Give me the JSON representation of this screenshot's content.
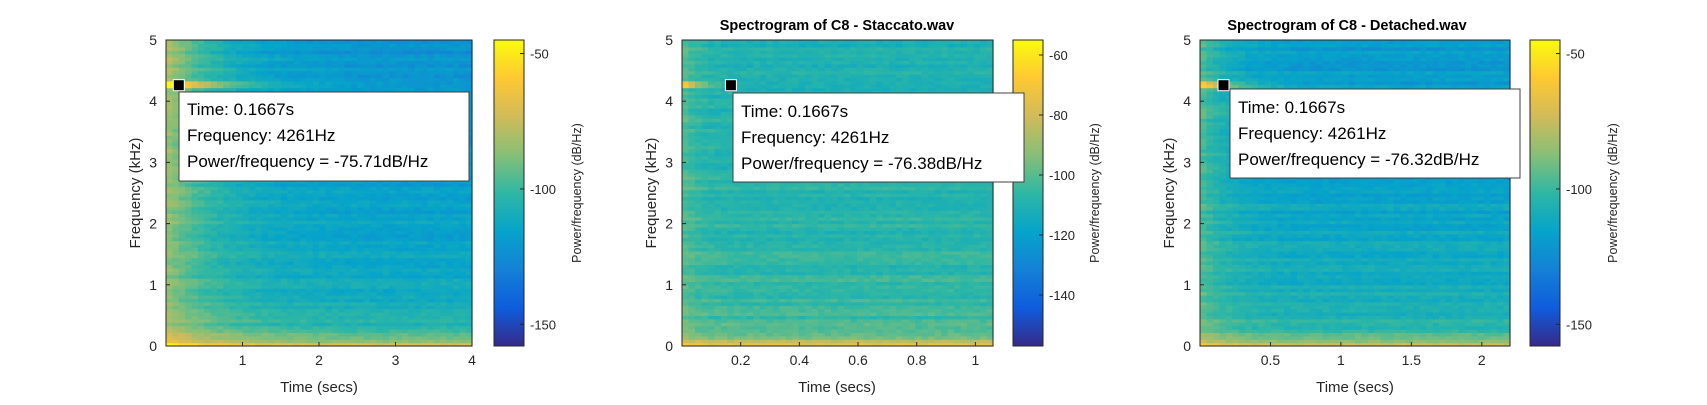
{
  "chart_data": [
    {
      "type": "heatmap",
      "title": "",
      "xlabel": "Time (secs)",
      "ylabel": "Frequency (kHz)",
      "xlim": [
        0,
        4
      ],
      "ylim": [
        0,
        5
      ],
      "xticks": [
        {
          "v": 1,
          "label": "1"
        },
        {
          "v": 2,
          "label": "2"
        },
        {
          "v": 3,
          "label": "3"
        },
        {
          "v": 4,
          "label": "4"
        }
      ],
      "yticks": [
        {
          "v": 0,
          "label": "0"
        },
        {
          "v": 1,
          "label": "1"
        },
        {
          "v": 2,
          "label": "2"
        },
        {
          "v": 3,
          "label": "3"
        },
        {
          "v": 4,
          "label": "4"
        },
        {
          "v": 5,
          "label": "5"
        }
      ],
      "colorbar": {
        "label": "Power/frequency (dB/Hz)",
        "clim": [
          -158,
          -45
        ],
        "ticks": [
          {
            "v": -50,
            "label": "-50"
          },
          {
            "v": -100,
            "label": "-100"
          },
          {
            "v": -150,
            "label": "-150"
          }
        ]
      },
      "marker": {
        "x": 0.1667,
        "y": 4.261
      },
      "datatip": [
        "Time: 0.1667s",
        "Frequency: 4261Hz",
        "Power/frequency = -75.71dB/Hz"
      ],
      "profile": {
        "base": 0.4,
        "slope": 0.09,
        "cut": 0.4,
        "decay": 0.18,
        "lowband": 0.12
      }
    },
    {
      "type": "heatmap",
      "title": "Spectrogram of C8 - Staccato.wav",
      "xlabel": "Time (secs)",
      "ylabel": "Frequency (kHz)",
      "xlim": [
        0,
        1.06
      ],
      "ylim": [
        0,
        5
      ],
      "xticks": [
        {
          "v": 0.2,
          "label": "0.2"
        },
        {
          "v": 0.4,
          "label": "0.4"
        },
        {
          "v": 0.6,
          "label": "0.6"
        },
        {
          "v": 0.8,
          "label": "0.8"
        },
        {
          "v": 1,
          "label": "1"
        }
      ],
      "yticks": [
        {
          "v": 0,
          "label": "0"
        },
        {
          "v": 1,
          "label": "1"
        },
        {
          "v": 2,
          "label": "2"
        },
        {
          "v": 3,
          "label": "3"
        },
        {
          "v": 4,
          "label": "4"
        },
        {
          "v": 5,
          "label": "5"
        }
      ],
      "colorbar": {
        "label": "Power/frequency (dB/Hz)",
        "clim": [
          -157,
          -55
        ],
        "ticks": [
          {
            "v": -60,
            "label": "-60"
          },
          {
            "v": -80,
            "label": "-80"
          },
          {
            "v": -100,
            "label": "-100"
          },
          {
            "v": -120,
            "label": "-120"
          },
          {
            "v": -140,
            "label": "-140"
          }
        ]
      },
      "marker": {
        "x": 0.1667,
        "y": 4.261
      },
      "datatip": [
        "Time: 0.1667s",
        "Frequency: 4261Hz",
        "Power/frequency = -76.38dB/Hz"
      ],
      "profile": {
        "base": 0.5,
        "slope": 0.05,
        "cut": 0.12,
        "decay": 0.05,
        "lowband": 0.06
      }
    },
    {
      "type": "heatmap",
      "title": "Spectrogram of C8 - Detached.wav",
      "xlabel": "Time (secs)",
      "ylabel": "Frequency (kHz)",
      "xlim": [
        0,
        2.2
      ],
      "ylim": [
        0,
        5
      ],
      "xticks": [
        {
          "v": 0.5,
          "label": "0.5"
        },
        {
          "v": 1,
          "label": "1"
        },
        {
          "v": 1.5,
          "label": "1.5"
        },
        {
          "v": 2,
          "label": "2"
        }
      ],
      "yticks": [
        {
          "v": 0,
          "label": "0"
        },
        {
          "v": 1,
          "label": "1"
        },
        {
          "v": 2,
          "label": "2"
        },
        {
          "v": 3,
          "label": "3"
        },
        {
          "v": 4,
          "label": "4"
        },
        {
          "v": 5,
          "label": "5"
        }
      ],
      "colorbar": {
        "label": "Power/frequency (dB/Hz)",
        "clim": [
          -158,
          -45
        ],
        "ticks": [
          {
            "v": -50,
            "label": "-50"
          },
          {
            "v": -100,
            "label": "-100"
          },
          {
            "v": -150,
            "label": "-150"
          }
        ]
      },
      "marker": {
        "x": 0.1667,
        "y": 4.261
      },
      "datatip": [
        "Time: 0.1667s",
        "Frequency: 4261Hz",
        "Power/frequency = -76.32dB/Hz"
      ],
      "profile": {
        "base": 0.42,
        "slope": 0.08,
        "cut": 0.22,
        "decay": 0.1,
        "lowband": 0.1
      }
    }
  ]
}
